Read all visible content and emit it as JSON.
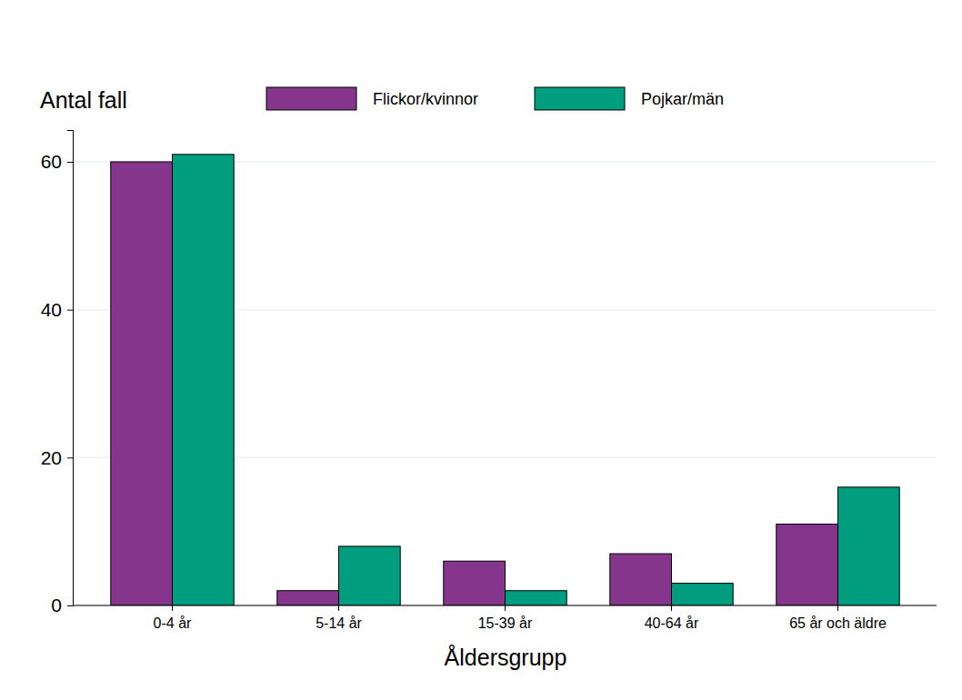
{
  "chart_data": {
    "type": "bar",
    "x_label": "Åldersgrupp",
    "y_label": "Antal fall",
    "categories": [
      "0-4 år",
      "5-14 år",
      "15-39 år",
      "40-64 år",
      "65 år och äldre"
    ],
    "series": [
      {
        "name": "Flickor/kvinnor",
        "color": "#85368c",
        "values": [
          60,
          2,
          6,
          7,
          11
        ]
      },
      {
        "name": "Pojkar/män",
        "color": "#009e7f",
        "values": [
          61,
          8,
          2,
          3,
          16
        ]
      }
    ],
    "ylim": [
      0,
      64.3
    ],
    "yticks": [
      0,
      20,
      40,
      60
    ],
    "grid": true,
    "legend": "top"
  }
}
